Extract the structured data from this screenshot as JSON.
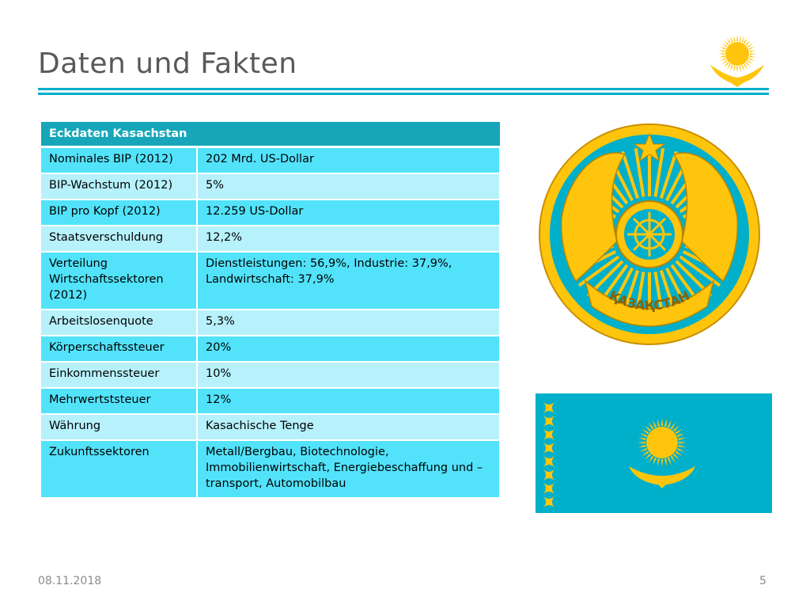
{
  "slide": {
    "title": "Daten und Fakten",
    "date": "08.11.2018",
    "page_number": "5"
  },
  "table": {
    "header": "Eckdaten Kasachstan",
    "rows": [
      {
        "label": "Nominales BIP (2012)",
        "value": "202 Mrd. US-Dollar"
      },
      {
        "label": "BIP-Wachstum (2012)",
        "value": "5%"
      },
      {
        "label": "BIP pro Kopf (2012)",
        "value": "12.259 US-Dollar"
      },
      {
        "label": "Staatsverschuldung",
        "value": "12,2%"
      },
      {
        "label": "Verteilung Wirtschaftssektoren (2012)",
        "value": "Dienstleistungen: 56,9%, Industrie: 37,9%, Landwirtschaft: 37,9%"
      },
      {
        "label": "Arbeitslosenquote",
        "value": "5,3%"
      },
      {
        "label": "Körperschaftssteuer",
        "value": "20%"
      },
      {
        "label": "Einkommenssteuer",
        "value": "10%"
      },
      {
        "label": "Mehrwertststeuer",
        "value": "12%"
      },
      {
        "label": "Währung",
        "value": "Kasachische Tenge"
      },
      {
        "label": "Zukunftssektoren",
        "value": "Metall/Bergbau, Biotechnologie, Immobilienwirtschaft, Energiebeschaffung und –transport, Automobilbau"
      }
    ]
  },
  "emblem": {
    "inscription": "ҚАЗАҚСТАН"
  },
  "colors": {
    "accent": "#00b0c8",
    "table_header": "#17a6b9",
    "row_dark": "#52e3fb",
    "row_light": "#b7f1fc",
    "flag_blue": "#00afca",
    "gold": "#fec50c"
  }
}
